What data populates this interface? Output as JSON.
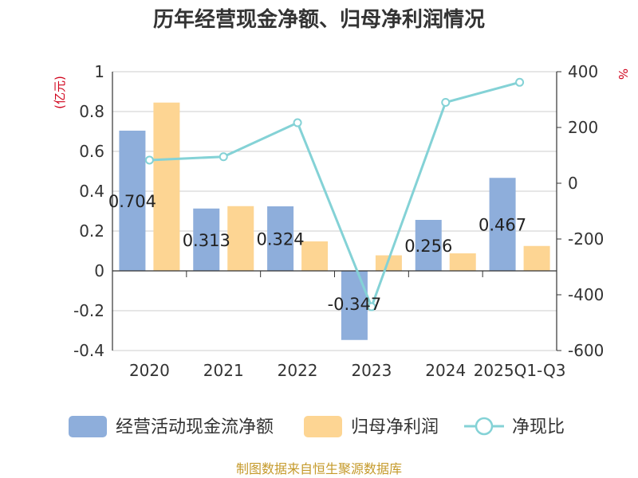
{
  "chart_data": {
    "type": "bar+line",
    "title": "历年经营现金净额、归母净利润情况",
    "categories": [
      "2020",
      "2021",
      "2022",
      "2023",
      "2024",
      "2025Q1-Q3"
    ],
    "series": [
      {
        "name": "经营活动现金流净额",
        "type": "bar",
        "axis": "left",
        "color": "#8eaedb",
        "values": [
          0.704,
          0.313,
          0.324,
          -0.347,
          0.256,
          0.467
        ],
        "labels": [
          "0.704",
          "0.313",
          "0.324",
          "-0.347",
          "0.256",
          "0.467"
        ]
      },
      {
        "name": "归母净利润",
        "type": "bar",
        "axis": "left",
        "color": "#fdd593",
        "values": [
          0.845,
          0.325,
          0.148,
          0.078,
          0.088,
          0.125
        ]
      },
      {
        "name": "净现比",
        "type": "line",
        "axis": "right",
        "color": "#84d2d6",
        "values": [
          83,
          95,
          217,
          -443,
          290,
          362
        ]
      }
    ],
    "y_left": {
      "label": "(亿元)",
      "min": -0.4,
      "max": 1,
      "ticks": [
        1,
        0.8,
        0.6,
        0.4,
        0.2,
        0,
        -0.2,
        -0.4
      ],
      "tick_labels": [
        "1",
        "0.8",
        "0.6",
        "0.4",
        "0.2",
        "0",
        "-0.2",
        "-0.4"
      ]
    },
    "y_right": {
      "label": "%",
      "min": -600,
      "max": 400,
      "ticks": [
        400,
        200,
        0,
        -200,
        -400,
        -600
      ],
      "tick_labels": [
        "400",
        "200",
        "0",
        "-200",
        "-400",
        "-600"
      ]
    },
    "grid": true,
    "legend_position": "bottom"
  },
  "source": "制图数据来自恒生聚源数据库",
  "colors": {
    "axis_label_red": "#d0021b",
    "source": "#c59a2b",
    "grid": "#cccccc",
    "axis": "#333333"
  }
}
